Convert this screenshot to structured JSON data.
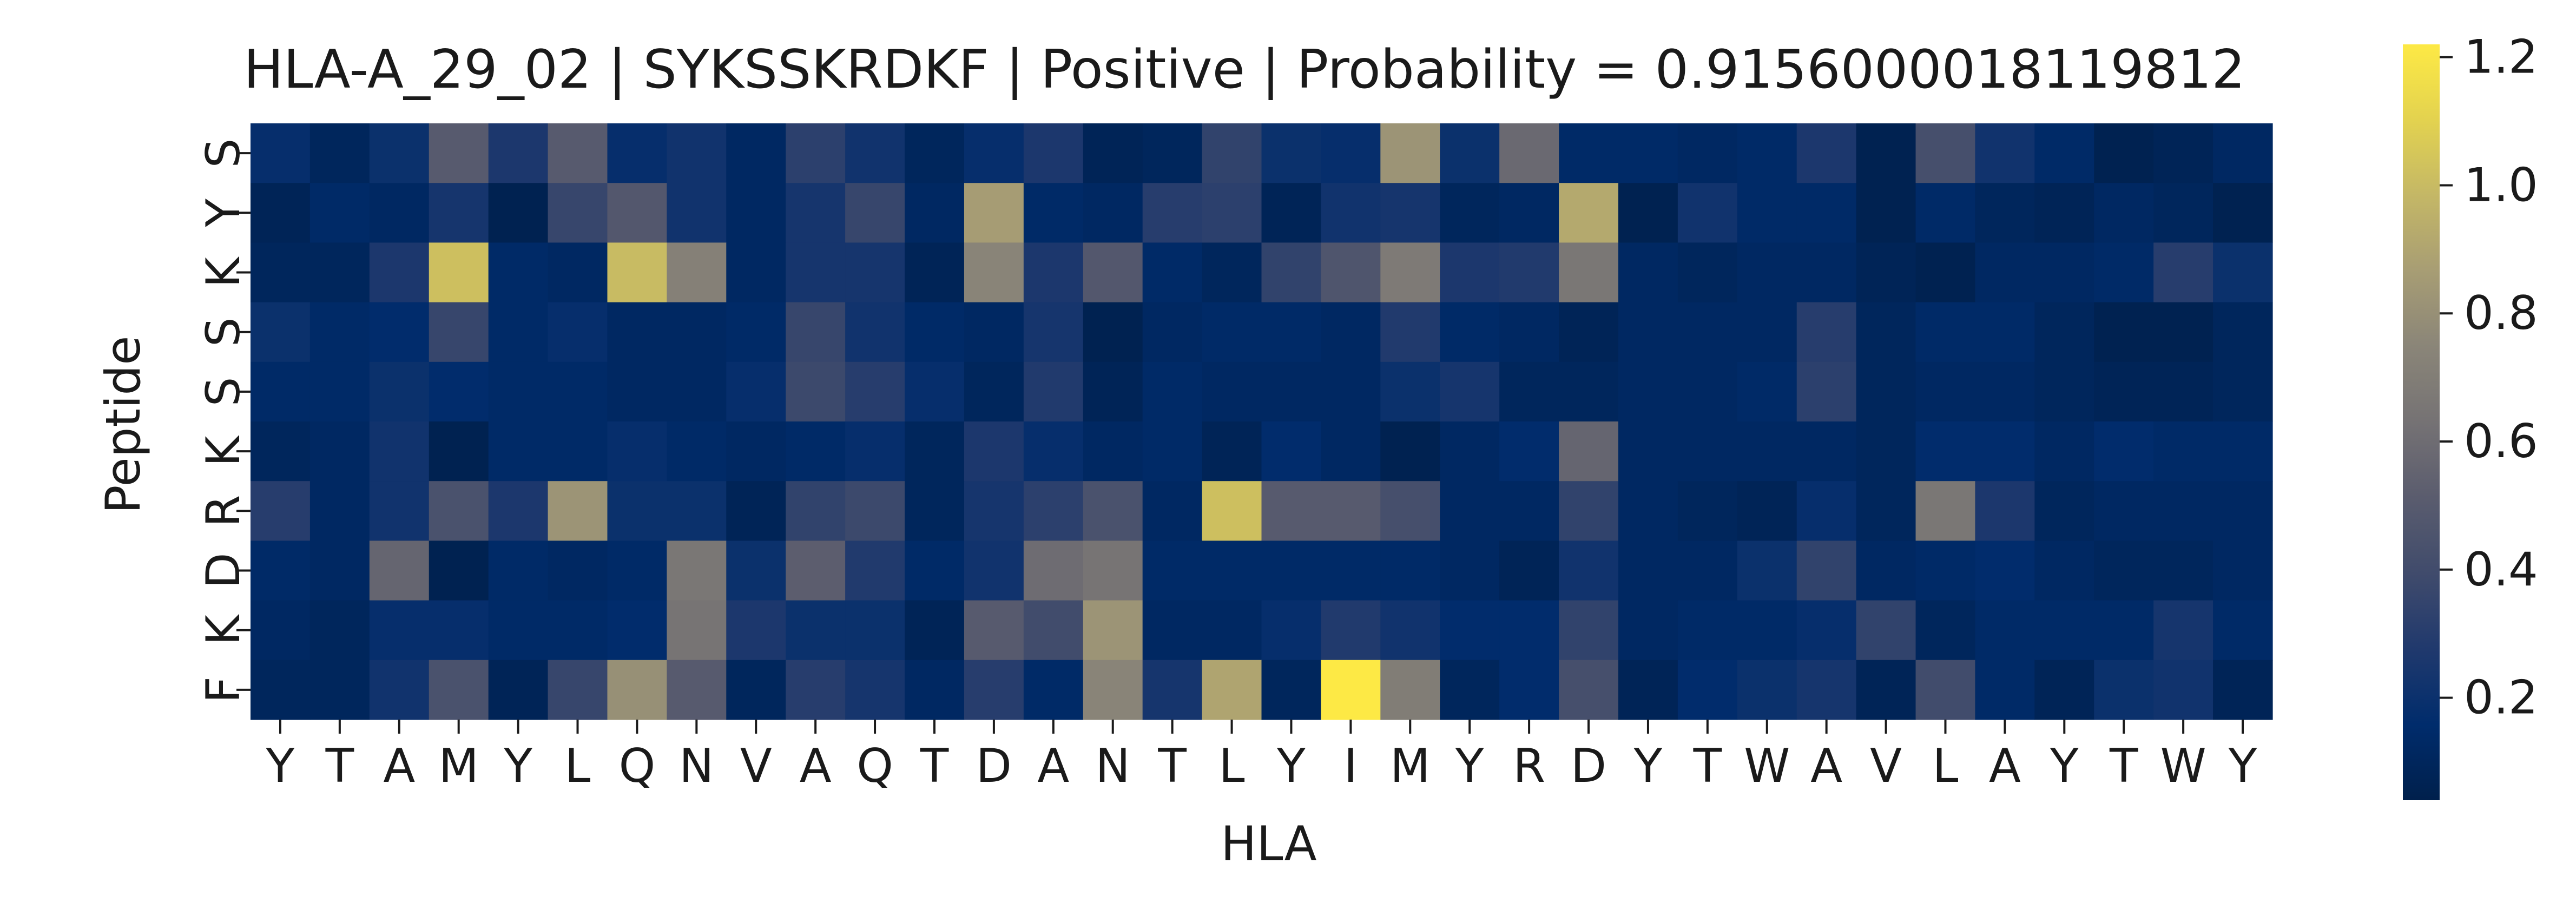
{
  "chart_data": {
    "type": "heatmap",
    "title": "HLA-A_29_02 | SYKSSKRDKF | Positive | Probability = 0.9156000018119812",
    "xlabel": "HLA",
    "ylabel": "Peptide",
    "x_categories": [
      "Y",
      "T",
      "A",
      "M",
      "Y",
      "L",
      "Q",
      "N",
      "V",
      "A",
      "Q",
      "T",
      "D",
      "A",
      "N",
      "T",
      "L",
      "Y",
      "I",
      "M",
      "Y",
      "R",
      "D",
      "Y",
      "T",
      "W",
      "A",
      "V",
      "L",
      "A",
      "Y",
      "T",
      "W",
      "Y"
    ],
    "y_categories": [
      "S",
      "Y",
      "K",
      "S",
      "S",
      "K",
      "R",
      "D",
      "K",
      "F"
    ],
    "colorbar": {
      "ticks": [
        0.2,
        0.4,
        0.6,
        0.8,
        1.0,
        1.2
      ],
      "tick_labels": [
        "0.2",
        "0.4",
        "0.6",
        "0.8",
        "1.0",
        "1.2"
      ],
      "vmin": 0.04,
      "vmax": 1.22,
      "colormap": "cividis"
    },
    "values": [
      [
        0.18,
        0.1,
        0.2,
        0.5,
        0.26,
        0.5,
        0.18,
        0.22,
        0.12,
        0.32,
        0.22,
        0.1,
        0.18,
        0.26,
        0.08,
        0.1,
        0.34,
        0.2,
        0.18,
        0.82,
        0.2,
        0.58,
        0.14,
        0.14,
        0.12,
        0.14,
        0.26,
        0.06,
        0.42,
        0.22,
        0.14,
        0.06,
        0.08,
        0.12
      ],
      [
        0.08,
        0.14,
        0.12,
        0.24,
        0.06,
        0.36,
        0.48,
        0.22,
        0.12,
        0.24,
        0.36,
        0.12,
        0.86,
        0.14,
        0.12,
        0.3,
        0.32,
        0.08,
        0.22,
        0.24,
        0.1,
        0.12,
        0.92,
        0.06,
        0.22,
        0.14,
        0.14,
        0.06,
        0.14,
        0.1,
        0.08,
        0.12,
        0.1,
        0.06
      ],
      [
        0.1,
        0.1,
        0.26,
        1.02,
        0.14,
        0.12,
        1.0,
        0.72,
        0.12,
        0.24,
        0.24,
        0.08,
        0.74,
        0.26,
        0.48,
        0.14,
        0.1,
        0.34,
        0.46,
        0.68,
        0.26,
        0.28,
        0.66,
        0.12,
        0.1,
        0.12,
        0.12,
        0.08,
        0.06,
        0.12,
        0.12,
        0.14,
        0.3,
        0.2
      ],
      [
        0.2,
        0.14,
        0.16,
        0.36,
        0.14,
        0.18,
        0.12,
        0.12,
        0.14,
        0.36,
        0.22,
        0.14,
        0.12,
        0.24,
        0.06,
        0.12,
        0.14,
        0.14,
        0.12,
        0.28,
        0.14,
        0.12,
        0.08,
        0.12,
        0.12,
        0.12,
        0.3,
        0.1,
        0.14,
        0.14,
        0.1,
        0.06,
        0.06,
        0.1
      ],
      [
        0.14,
        0.14,
        0.2,
        0.16,
        0.14,
        0.14,
        0.12,
        0.12,
        0.18,
        0.38,
        0.3,
        0.18,
        0.1,
        0.28,
        0.08,
        0.14,
        0.12,
        0.12,
        0.12,
        0.2,
        0.24,
        0.1,
        0.1,
        0.12,
        0.12,
        0.14,
        0.32,
        0.1,
        0.12,
        0.12,
        0.1,
        0.08,
        0.08,
        0.1
      ],
      [
        0.1,
        0.12,
        0.22,
        0.06,
        0.14,
        0.14,
        0.18,
        0.14,
        0.12,
        0.14,
        0.18,
        0.1,
        0.26,
        0.18,
        0.12,
        0.14,
        0.08,
        0.16,
        0.12,
        0.06,
        0.12,
        0.16,
        0.56,
        0.12,
        0.12,
        0.12,
        0.12,
        0.1,
        0.16,
        0.16,
        0.12,
        0.16,
        0.14,
        0.14
      ],
      [
        0.3,
        0.12,
        0.22,
        0.44,
        0.26,
        0.82,
        0.2,
        0.2,
        0.08,
        0.34,
        0.38,
        0.1,
        0.24,
        0.32,
        0.44,
        0.12,
        1.02,
        0.5,
        0.5,
        0.42,
        0.12,
        0.12,
        0.34,
        0.12,
        0.1,
        0.08,
        0.18,
        0.1,
        0.66,
        0.26,
        0.1,
        0.12,
        0.12,
        0.12
      ],
      [
        0.14,
        0.12,
        0.56,
        0.06,
        0.14,
        0.12,
        0.14,
        0.66,
        0.2,
        0.52,
        0.28,
        0.14,
        0.22,
        0.6,
        0.64,
        0.14,
        0.14,
        0.14,
        0.14,
        0.14,
        0.12,
        0.08,
        0.22,
        0.12,
        0.12,
        0.2,
        0.34,
        0.12,
        0.14,
        0.16,
        0.12,
        0.1,
        0.1,
        0.12
      ],
      [
        0.12,
        0.1,
        0.18,
        0.18,
        0.14,
        0.14,
        0.16,
        0.64,
        0.26,
        0.2,
        0.2,
        0.08,
        0.5,
        0.4,
        0.82,
        0.12,
        0.12,
        0.18,
        0.28,
        0.22,
        0.16,
        0.16,
        0.34,
        0.12,
        0.14,
        0.14,
        0.18,
        0.34,
        0.1,
        0.14,
        0.14,
        0.14,
        0.24,
        0.14
      ],
      [
        0.1,
        0.1,
        0.22,
        0.44,
        0.08,
        0.36,
        0.8,
        0.5,
        0.1,
        0.3,
        0.24,
        0.12,
        0.3,
        0.14,
        0.74,
        0.24,
        0.9,
        0.1,
        1.22,
        0.7,
        0.1,
        0.16,
        0.42,
        0.08,
        0.16,
        0.2,
        0.24,
        0.08,
        0.4,
        0.14,
        0.08,
        0.2,
        0.22,
        0.08
      ]
    ]
  }
}
